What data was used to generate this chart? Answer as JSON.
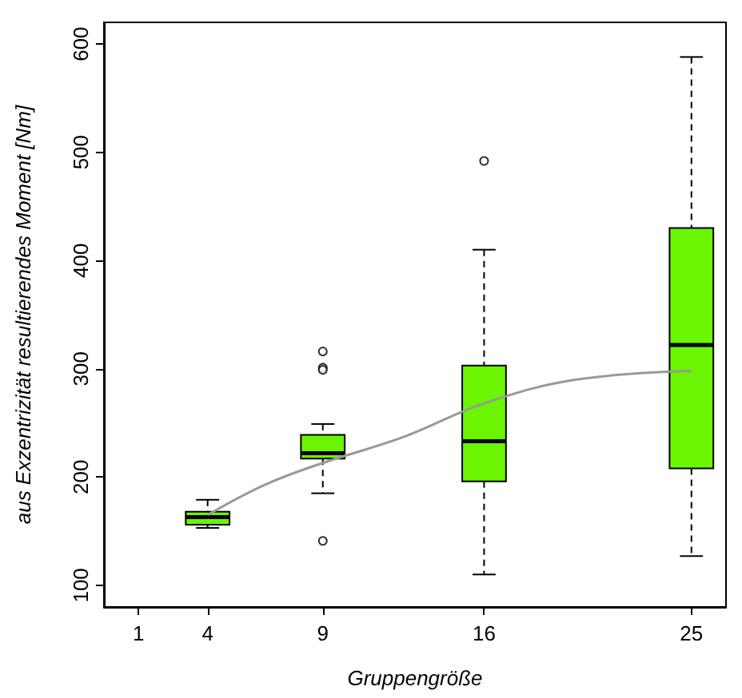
{
  "chart_data": {
    "type": "box",
    "xlabel": "Gruppengröße",
    "ylabel": "aus Exzentrizität resultierendes Moment [Nm]",
    "x": [
      4,
      9,
      16,
      25
    ],
    "series": [
      {
        "color": "#6cf500",
        "boxes": [
          {
            "low": 153,
            "q1": 156,
            "median": 163,
            "q3": 168,
            "high": 179
          },
          {
            "low": 185,
            "q1": 217,
            "median": 222,
            "q3": 239,
            "high": 249,
            "outliers": [
              316,
              301,
              299,
              141
            ]
          },
          {
            "low": 110,
            "q1": 196,
            "median": 233,
            "q3": 303,
            "high": 410,
            "outliers": [
              492
            ]
          },
          {
            "low": 127,
            "q1": 208,
            "median": 322,
            "q3": 430,
            "high": 588
          }
        ]
      },
      {
        "type": "line",
        "color": "#999999",
        "x": [
          4,
          6.5,
          9,
          12.5,
          16,
          20,
          25
        ],
        "values": [
          165,
          193,
          213,
          237,
          268,
          290,
          298
        ],
        "marker": "none"
      }
    ],
    "xlim": [
      -0.5,
      26.5
    ],
    "xticks": [
      1,
      4,
      9,
      16,
      25
    ],
    "ylim": [
      80,
      620
    ],
    "yticks": [
      100,
      200,
      300,
      400,
      500,
      600
    ],
    "grid": false
  }
}
